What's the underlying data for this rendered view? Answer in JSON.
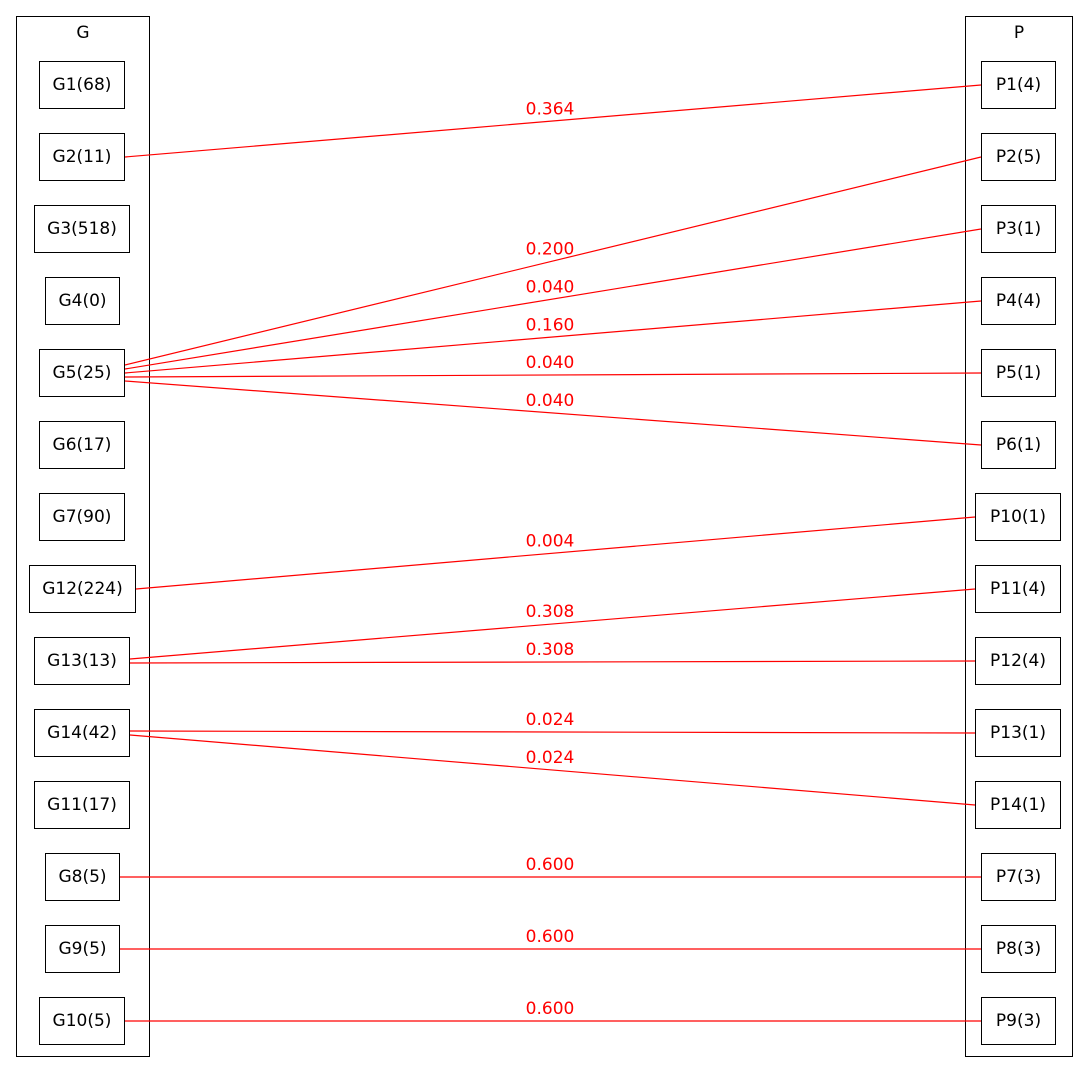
{
  "clusters": {
    "g": {
      "title": "G"
    },
    "p": {
      "title": "P"
    }
  },
  "g_nodes": [
    {
      "id": "G1",
      "label": "G1(68)"
    },
    {
      "id": "G2",
      "label": "G2(11)"
    },
    {
      "id": "G3",
      "label": "G3(518)"
    },
    {
      "id": "G4",
      "label": "G4(0)"
    },
    {
      "id": "G5",
      "label": "G5(25)"
    },
    {
      "id": "G6",
      "label": "G6(17)"
    },
    {
      "id": "G7",
      "label": "G7(90)"
    },
    {
      "id": "G12",
      "label": "G12(224)"
    },
    {
      "id": "G13",
      "label": "G13(13)"
    },
    {
      "id": "G14",
      "label": "G14(42)"
    },
    {
      "id": "G11",
      "label": "G11(17)"
    },
    {
      "id": "G8",
      "label": "G8(5)"
    },
    {
      "id": "G9",
      "label": "G9(5)"
    },
    {
      "id": "G10",
      "label": "G10(5)"
    }
  ],
  "p_nodes": [
    {
      "id": "P1",
      "label": "P1(4)"
    },
    {
      "id": "P2",
      "label": "P2(5)"
    },
    {
      "id": "P3",
      "label": "P3(1)"
    },
    {
      "id": "P4",
      "label": "P4(4)"
    },
    {
      "id": "P5",
      "label": "P5(1)"
    },
    {
      "id": "P6",
      "label": "P6(1)"
    },
    {
      "id": "P10",
      "label": "P10(1)"
    },
    {
      "id": "P11",
      "label": "P11(4)"
    },
    {
      "id": "P12",
      "label": "P12(4)"
    },
    {
      "id": "P13",
      "label": "P13(1)"
    },
    {
      "id": "P14",
      "label": "P14(1)"
    },
    {
      "id": "P7",
      "label": "P7(3)"
    },
    {
      "id": "P8",
      "label": "P8(3)"
    },
    {
      "id": "P9",
      "label": "P9(3)"
    }
  ],
  "edges": [
    {
      "from": "G2",
      "to": "P1",
      "label": "0.364"
    },
    {
      "from": "G5",
      "to": "P2",
      "label": "0.200"
    },
    {
      "from": "G5",
      "to": "P3",
      "label": "0.040"
    },
    {
      "from": "G5",
      "to": "P4",
      "label": "0.160"
    },
    {
      "from": "G5",
      "to": "P5",
      "label": "0.040"
    },
    {
      "from": "G5",
      "to": "P6",
      "label": "0.040"
    },
    {
      "from": "G12",
      "to": "P10",
      "label": "0.004"
    },
    {
      "from": "G13",
      "to": "P11",
      "label": "0.308"
    },
    {
      "from": "G13",
      "to": "P12",
      "label": "0.308"
    },
    {
      "from": "G14",
      "to": "P13",
      "label": "0.024"
    },
    {
      "from": "G14",
      "to": "P14",
      "label": "0.024"
    },
    {
      "from": "G8",
      "to": "P7",
      "label": "0.600"
    },
    {
      "from": "G9",
      "to": "P8",
      "label": "0.600"
    },
    {
      "from": "G10",
      "to": "P9",
      "label": "0.600"
    }
  ],
  "edge_color": "#ff0000"
}
